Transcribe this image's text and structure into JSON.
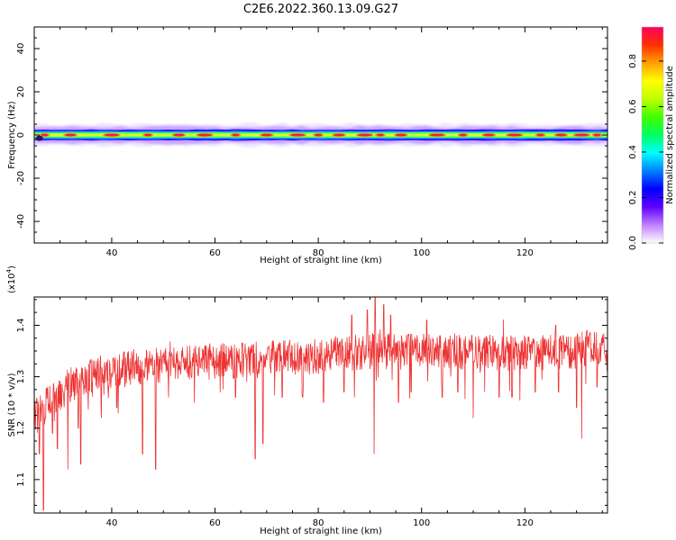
{
  "title": "C2E6.2022.360.13.09.G27",
  "chart_data": [
    {
      "type": "heatmap",
      "xlabel": "Height of straight line (km)",
      "ylabel": "Frequency (Hz)",
      "xlim": [
        25,
        136
      ],
      "ylim": [
        -50,
        50
      ],
      "xticks": [
        40,
        60,
        80,
        100,
        120
      ],
      "yticks": [
        -40,
        -20,
        0,
        20,
        40
      ],
      "ytick_labels": [
        "-40",
        "-20",
        "0",
        "20",
        "40"
      ],
      "grid": false,
      "signal": {
        "center_hz": 0,
        "description_values": {
          "core_halfwidth_hz": 1.2,
          "blue_halfwidth_hz": 2.5,
          "purple_halfwidth_hz": 5
        },
        "peak_amplitude_x": [
          27,
          32,
          40,
          47,
          53,
          58,
          64,
          70,
          76,
          80,
          84,
          89,
          92,
          96,
          103,
          108,
          113,
          118,
          123,
          127,
          131,
          134
        ]
      },
      "colorbar": {
        "label": "Normalized spectral amplitude",
        "range": [
          0.0,
          0.95
        ],
        "ticks": [
          0.0,
          0.2,
          0.4,
          0.6,
          0.8
        ],
        "tick_labels": [
          "0.0",
          "0.2",
          "0.4",
          "0.6",
          "0.8"
        ],
        "colors": [
          "#ffffff",
          "#c080ff",
          "#6000ff",
          "#0000ff",
          "#0080ff",
          "#00ffff",
          "#00ff60",
          "#40ff00",
          "#c0ff00",
          "#ffff00",
          "#ffa000",
          "#ff3000",
          "#ff0060"
        ]
      }
    },
    {
      "type": "line",
      "xlabel": "Height of straight line (km)",
      "ylabel": "SNR (10 * v/v)",
      "multiplier_label": "(x10",
      "multiplier_exp": "4",
      "multiplier_close": ")",
      "xlim": [
        25,
        136
      ],
      "ylim": [
        1.035,
        1.455
      ],
      "xticks": [
        40,
        60,
        80,
        100,
        120
      ],
      "yticks": [
        1.1,
        1.2,
        1.3,
        1.4
      ],
      "ytick_labels": [
        "1.1",
        "1.2",
        "1.3",
        "1.4"
      ],
      "series": [
        {
          "color": "#ee3333",
          "trend": {
            "x": [
              25,
              30,
              35,
              45,
              60,
              80,
              90,
              100,
              120,
              136
            ],
            "y": [
              1.22,
              1.27,
              1.3,
              1.32,
              1.33,
              1.34,
              1.35,
              1.35,
              1.345,
              1.355
            ]
          },
          "dips": [
            {
              "x": 26.0,
              "y": 1.15
            },
            {
              "x": 26.8,
              "y": 1.04
            },
            {
              "x": 28.5,
              "y": 1.19
            },
            {
              "x": 29.5,
              "y": 1.16
            },
            {
              "x": 31.5,
              "y": 1.12
            },
            {
              "x": 33.5,
              "y": 1.2
            },
            {
              "x": 34.0,
              "y": 1.13
            },
            {
              "x": 38.0,
              "y": 1.22
            },
            {
              "x": 41.0,
              "y": 1.24
            },
            {
              "x": 46.0,
              "y": 1.15
            },
            {
              "x": 48.5,
              "y": 1.12
            },
            {
              "x": 51.0,
              "y": 1.26
            },
            {
              "x": 56.0,
              "y": 1.25
            },
            {
              "x": 61.0,
              "y": 1.27
            },
            {
              "x": 64.0,
              "y": 1.26
            },
            {
              "x": 67.8,
              "y": 1.14
            },
            {
              "x": 69.3,
              "y": 1.17
            },
            {
              "x": 73.0,
              "y": 1.26
            },
            {
              "x": 77.0,
              "y": 1.26
            },
            {
              "x": 81.0,
              "y": 1.25
            },
            {
              "x": 85.0,
              "y": 1.27
            },
            {
              "x": 87.0,
              "y": 1.26
            },
            {
              "x": 90.8,
              "y": 1.15
            },
            {
              "x": 95.5,
              "y": 1.25
            },
            {
              "x": 98.0,
              "y": 1.27
            },
            {
              "x": 104.0,
              "y": 1.26
            },
            {
              "x": 107.0,
              "y": 1.27
            },
            {
              "x": 110.0,
              "y": 1.22
            },
            {
              "x": 115.0,
              "y": 1.26
            },
            {
              "x": 117.5,
              "y": 1.26
            },
            {
              "x": 122.0,
              "y": 1.27
            },
            {
              "x": 126.5,
              "y": 1.27
            },
            {
              "x": 130.0,
              "y": 1.24
            },
            {
              "x": 131.0,
              "y": 1.18
            },
            {
              "x": 134.0,
              "y": 1.28
            }
          ],
          "spikes": [
            {
              "x": 86.5,
              "y": 1.42
            },
            {
              "x": 89.5,
              "y": 1.43
            },
            {
              "x": 91.0,
              "y": 1.455
            },
            {
              "x": 92.7,
              "y": 1.44
            },
            {
              "x": 94.0,
              "y": 1.42
            },
            {
              "x": 101.0,
              "y": 1.41
            },
            {
              "x": 126.0,
              "y": 1.4
            },
            {
              "x": 132.0,
              "y": 1.39
            }
          ]
        }
      ]
    }
  ]
}
